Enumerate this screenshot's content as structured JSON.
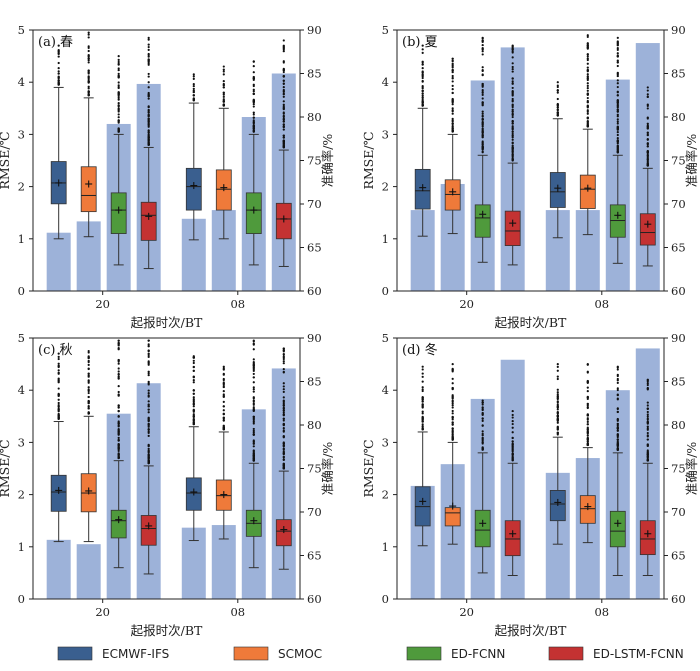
{
  "legend": [
    {
      "name": "ECMWF-IFS",
      "color": "#3a5f8f"
    },
    {
      "name": "SCMOC",
      "color": "#ef7a3a"
    },
    {
      "name": "ED-FCNN",
      "color": "#4f9a3c"
    },
    {
      "name": "ED-LSTM-FCNN",
      "color": "#c43232"
    }
  ],
  "accuracy_bar_color": "#9db2d9",
  "chart_data": [
    {
      "type": "box+bar",
      "panel_label": "(a) 春",
      "xlabel": "起报时次/BT",
      "ylabel": "RMSE/℃",
      "y2label": "准确率/%",
      "ylim": [
        0,
        5
      ],
      "y2lim": [
        60,
        90
      ],
      "categories": [
        "20",
        "08"
      ],
      "accuracy": [
        [
          66.7,
          68.0,
          79.2,
          83.8
        ],
        [
          68.3,
          69.3,
          80.0,
          85.0
        ]
      ],
      "boxes": [
        [
          {
            "whislo": 1.0,
            "q1": 1.67,
            "med": 2.07,
            "q3": 2.48,
            "whishi": 3.9,
            "mean": 2.07,
            "flier_max": 4.7
          },
          {
            "whislo": 1.04,
            "q1": 1.52,
            "med": 1.83,
            "q3": 2.38,
            "whishi": 3.7,
            "mean": 2.05,
            "flier_max": 4.95
          },
          {
            "whislo": 0.5,
            "q1": 1.1,
            "med": 1.55,
            "q3": 1.88,
            "whishi": 3.0,
            "mean": 1.55,
            "flier_max": 4.5
          },
          {
            "whislo": 0.43,
            "q1": 0.97,
            "med": 1.45,
            "q3": 1.7,
            "whishi": 2.75,
            "mean": 1.43,
            "flier_max": 4.85
          }
        ],
        [
          {
            "whislo": 0.98,
            "q1": 1.55,
            "med": 2.0,
            "q3": 2.35,
            "whishi": 3.6,
            "mean": 2.02,
            "flier_max": 4.15
          },
          {
            "whislo": 1.0,
            "q1": 1.55,
            "med": 1.95,
            "q3": 2.32,
            "whishi": 3.5,
            "mean": 1.98,
            "flier_max": 4.3
          },
          {
            "whislo": 0.5,
            "q1": 1.1,
            "med": 1.55,
            "q3": 1.88,
            "whishi": 3.0,
            "mean": 1.55,
            "flier_max": 4.4
          },
          {
            "whislo": 0.47,
            "q1": 1.0,
            "med": 1.38,
            "q3": 1.68,
            "whishi": 2.7,
            "mean": 1.38,
            "flier_max": 4.8
          }
        ]
      ]
    },
    {
      "type": "box+bar",
      "panel_label": "(b) 夏",
      "xlabel": "起报时次/BT",
      "ylabel": "RMSE/℃",
      "y2label": "准确率/%",
      "ylim": [
        0,
        5
      ],
      "y2lim": [
        60,
        90
      ],
      "categories": [
        "20",
        "08"
      ],
      "accuracy": [
        [
          69.3,
          72.3,
          84.2,
          88.0
        ],
        [
          69.3,
          69.3,
          84.3,
          88.5
        ]
      ],
      "boxes": [
        [
          {
            "whislo": 1.05,
            "q1": 1.57,
            "med": 1.92,
            "q3": 2.33,
            "whishi": 3.5,
            "mean": 1.98,
            "flier_max": 4.7
          },
          {
            "whislo": 1.1,
            "q1": 1.55,
            "med": 1.85,
            "q3": 2.13,
            "whishi": 3.0,
            "mean": 1.9,
            "flier_max": 4.45
          },
          {
            "whislo": 0.55,
            "q1": 1.03,
            "med": 1.4,
            "q3": 1.65,
            "whishi": 2.6,
            "mean": 1.47,
            "flier_max": 4.85
          },
          {
            "whislo": 0.5,
            "q1": 0.87,
            "med": 1.15,
            "q3": 1.53,
            "whishi": 2.45,
            "mean": 1.3,
            "flier_max": 4.7
          }
        ],
        [
          {
            "whislo": 1.02,
            "q1": 1.6,
            "med": 1.9,
            "q3": 2.27,
            "whishi": 3.3,
            "mean": 1.97,
            "flier_max": 4.0
          },
          {
            "whislo": 1.08,
            "q1": 1.58,
            "med": 1.95,
            "q3": 2.22,
            "whishi": 3.1,
            "mean": 1.97,
            "flier_max": 4.9
          },
          {
            "whislo": 0.53,
            "q1": 1.03,
            "med": 1.35,
            "q3": 1.65,
            "whishi": 2.6,
            "mean": 1.45,
            "flier_max": 4.85
          },
          {
            "whislo": 0.48,
            "q1": 0.88,
            "med": 1.12,
            "q3": 1.48,
            "whishi": 2.35,
            "mean": 1.28,
            "flier_max": 3.9
          }
        ]
      ]
    },
    {
      "type": "box+bar",
      "panel_label": "(c) 秋",
      "xlabel": "起报时次/BT",
      "ylabel": "RMSE/℃",
      "y2label": "准确率/%",
      "ylim": [
        0,
        5
      ],
      "y2lim": [
        60,
        90
      ],
      "categories": [
        "20",
        "08"
      ],
      "accuracy": [
        [
          66.8,
          66.3,
          81.3,
          84.8
        ],
        [
          68.2,
          68.5,
          81.8,
          86.5
        ]
      ],
      "boxes": [
        [
          {
            "whislo": 1.1,
            "q1": 1.68,
            "med": 2.05,
            "q3": 2.37,
            "whishi": 3.4,
            "mean": 2.08,
            "flier_max": 4.7
          },
          {
            "whislo": 1.1,
            "q1": 1.67,
            "med": 2.03,
            "q3": 2.4,
            "whishi": 3.5,
            "mean": 2.07,
            "flier_max": 4.75
          },
          {
            "whislo": 0.6,
            "q1": 1.17,
            "med": 1.5,
            "q3": 1.7,
            "whishi": 2.65,
            "mean": 1.52,
            "flier_max": 4.95
          },
          {
            "whislo": 0.48,
            "q1": 1.03,
            "med": 1.35,
            "q3": 1.6,
            "whishi": 2.55,
            "mean": 1.4,
            "flier_max": 4.95
          }
        ],
        [
          {
            "whislo": 1.12,
            "q1": 1.7,
            "med": 2.03,
            "q3": 2.32,
            "whishi": 3.3,
            "mean": 2.05,
            "flier_max": 4.65
          },
          {
            "whislo": 1.15,
            "q1": 1.7,
            "med": 1.98,
            "q3": 2.28,
            "whishi": 3.2,
            "mean": 2.0,
            "flier_max": 4.45
          },
          {
            "whislo": 0.6,
            "q1": 1.2,
            "med": 1.45,
            "q3": 1.7,
            "whishi": 2.6,
            "mean": 1.5,
            "flier_max": 4.95
          },
          {
            "whislo": 0.57,
            "q1": 1.02,
            "med": 1.3,
            "q3": 1.52,
            "whishi": 2.45,
            "mean": 1.33,
            "flier_max": 4.8
          }
        ]
      ]
    },
    {
      "type": "box+bar",
      "panel_label": "(d) 冬",
      "xlabel": "起报时次/BT",
      "ylabel": "RMSE/℃",
      "y2label": "准确率/%",
      "ylim": [
        0,
        5
      ],
      "y2lim": [
        60,
        90
      ],
      "categories": [
        "20",
        "08"
      ],
      "accuracy": [
        [
          73.0,
          75.5,
          83.0,
          87.5
        ],
        [
          74.5,
          76.2,
          84.0,
          88.8
        ]
      ],
      "boxes": [
        [
          {
            "whislo": 1.02,
            "q1": 1.4,
            "med": 1.77,
            "q3": 2.15,
            "whishi": 3.2,
            "mean": 1.87,
            "flier_max": 4.45
          },
          {
            "whislo": 1.05,
            "q1": 1.4,
            "med": 1.65,
            "q3": 1.75,
            "whishi": 3.0,
            "mean": 1.78,
            "flier_max": 4.5
          },
          {
            "whislo": 0.5,
            "q1": 1.0,
            "med": 1.32,
            "q3": 1.7,
            "whishi": 2.8,
            "mean": 1.45,
            "flier_max": 3.8
          },
          {
            "whislo": 0.45,
            "q1": 0.83,
            "med": 1.15,
            "q3": 1.5,
            "whishi": 2.6,
            "mean": 1.25,
            "flier_max": 3.6
          }
        ],
        [
          {
            "whislo": 1.05,
            "q1": 1.5,
            "med": 1.82,
            "q3": 2.08,
            "whishi": 3.1,
            "mean": 1.85,
            "flier_max": 4.5
          },
          {
            "whislo": 1.08,
            "q1": 1.45,
            "med": 1.73,
            "q3": 1.98,
            "whishi": 2.9,
            "mean": 1.77,
            "flier_max": 4.5
          },
          {
            "whislo": 0.45,
            "q1": 1.0,
            "med": 1.3,
            "q3": 1.68,
            "whishi": 2.8,
            "mean": 1.45,
            "flier_max": 4.45
          },
          {
            "whislo": 0.45,
            "q1": 0.85,
            "med": 1.15,
            "q3": 1.5,
            "whishi": 2.6,
            "mean": 1.25,
            "flier_max": 4.2
          }
        ]
      ]
    }
  ]
}
